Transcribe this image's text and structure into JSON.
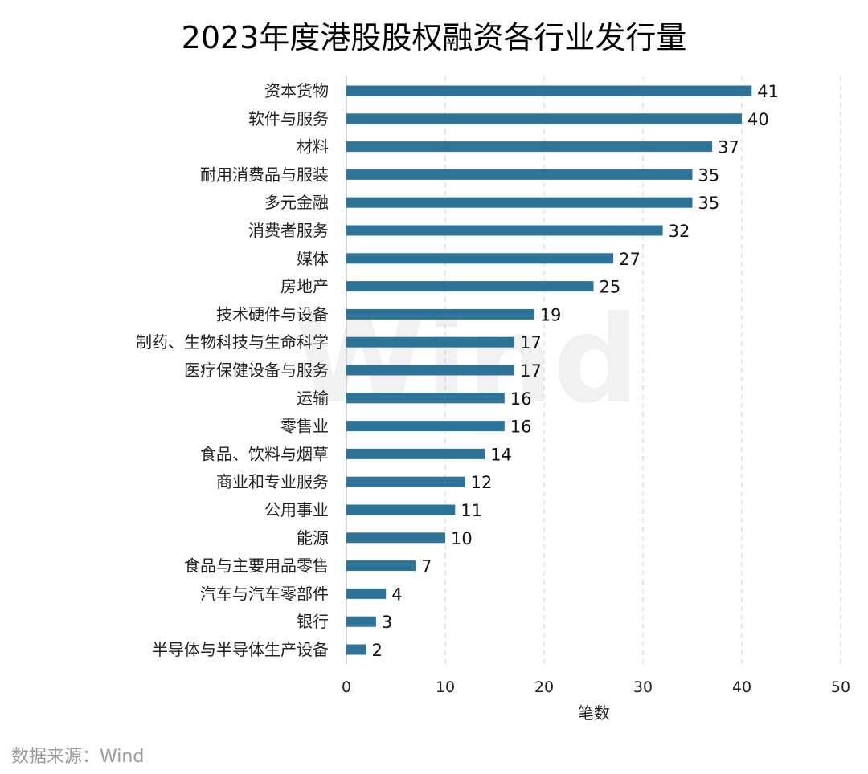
{
  "chart_data": {
    "type": "bar",
    "orientation": "horizontal",
    "title": "2023年度港股股权融资各行业发行量",
    "xlabel": "笔数",
    "ylabel": "",
    "xlim": [
      0,
      50
    ],
    "xticks": [
      0,
      10,
      20,
      30,
      40,
      50
    ],
    "grid": "vertical dashed",
    "bar_color": "#2E7498",
    "categories": [
      "资本货物",
      "软件与服务",
      "材料",
      "耐用消费品与服装",
      "多元金融",
      "消费者服务",
      "媒体",
      "房地产",
      "技术硬件与设备",
      "制药、生物科技与生命科学",
      "医疗保健设备与服务",
      "运输",
      "零售业",
      "食品、饮料与烟草",
      "商业和专业服务",
      "公用事业",
      "能源",
      "食品与主要用品零售",
      "汽车与汽车零部件",
      "银行",
      "半导体与半导体生产设备"
    ],
    "values": [
      41,
      40,
      37,
      35,
      35,
      32,
      27,
      25,
      19,
      17,
      17,
      16,
      16,
      14,
      12,
      11,
      10,
      7,
      4,
      3,
      2
    ]
  },
  "source": "数据来源：Wind",
  "watermark": "Wind"
}
